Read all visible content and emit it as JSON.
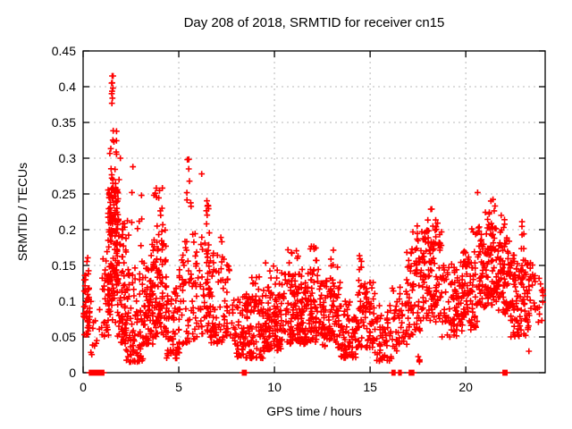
{
  "window": {
    "title": "Day 208 of 2018, SRMTID for receiver cn15"
  },
  "chart_data": {
    "type": "scatter",
    "title": "Day 208 of 2018, SRMTID for receiver cn15",
    "xlabel": "GPS time / hours",
    "ylabel": "SRMTID / TECUs",
    "xlim": [
      0,
      24.15
    ],
    "ylim": [
      0,
      0.45
    ],
    "xticks": [
      0,
      5,
      10,
      15,
      20
    ],
    "xtick_labels": [
      "0",
      "5",
      "10",
      "15",
      "20"
    ],
    "yticks": [
      0,
      0.05,
      0.1,
      0.15,
      0.2,
      0.25,
      0.3,
      0.35,
      0.4,
      0.45
    ],
    "ytick_labels": [
      "0",
      "0.05",
      "0.1",
      "0.15",
      "0.2",
      "0.25",
      "0.3",
      "0.35",
      "0.4",
      "0.45"
    ],
    "grid": true,
    "legend": false,
    "marker": "plus",
    "marker_color": "#ff0000",
    "grid_color": "#b8b8b8",
    "axis_color": "#000000",
    "background_color": "#ffffff",
    "cluster_format": "[x_start_hours, x_end_hours, n_points, y_min_TECU, y_max_TECU, low_bias_power]",
    "clusters": [
      [
        0.02,
        0.35,
        40,
        0.05,
        0.125,
        1.0
      ],
      [
        0.05,
        0.3,
        8,
        0.125,
        0.165,
        1.0
      ],
      [
        0.4,
        1.05,
        14,
        0.02,
        0.1,
        1.3
      ],
      [
        1.0,
        1.35,
        30,
        0.05,
        0.17,
        1.1
      ],
      [
        1.3,
        1.85,
        150,
        0.07,
        0.26,
        0.9
      ],
      [
        1.35,
        1.75,
        16,
        0.26,
        0.34,
        1.0
      ],
      [
        1.45,
        1.62,
        5,
        0.375,
        0.418,
        1.0
      ],
      [
        1.8,
        2.25,
        70,
        0.04,
        0.23,
        1.4
      ],
      [
        2.25,
        3.15,
        85,
        0.015,
        0.15,
        1.5
      ],
      [
        2.3,
        3.1,
        8,
        0.15,
        0.22,
        1.0
      ],
      [
        3.15,
        3.65,
        60,
        0.04,
        0.17,
        1.3
      ],
      [
        3.6,
        4.35,
        100,
        0.05,
        0.22,
        1.3
      ],
      [
        3.7,
        4.25,
        10,
        0.22,
        0.26,
        1.0
      ],
      [
        4.35,
        5.05,
        60,
        0.02,
        0.12,
        1.3
      ],
      [
        5.0,
        5.85,
        55,
        0.04,
        0.2,
        1.5
      ],
      [
        5.35,
        5.65,
        6,
        0.21,
        0.3,
        1.0
      ],
      [
        5.85,
        6.65,
        65,
        0.05,
        0.2,
        1.4
      ],
      [
        6.35,
        6.6,
        8,
        0.2,
        0.25,
        1.0
      ],
      [
        6.6,
        7.65,
        80,
        0.04,
        0.16,
        1.4
      ],
      [
        6.7,
        7.3,
        6,
        0.16,
        0.2,
        1.0
      ],
      [
        7.65,
        8.35,
        40,
        0.02,
        0.11,
        1.3
      ],
      [
        8.3,
        9.45,
        105,
        0.02,
        0.11,
        1.2
      ],
      [
        8.8,
        9.4,
        6,
        0.11,
        0.14,
        1.0
      ],
      [
        9.4,
        10.35,
        105,
        0.03,
        0.125,
        1.2
      ],
      [
        9.5,
        10.2,
        6,
        0.125,
        0.155,
        1.0
      ],
      [
        10.35,
        11.35,
        105,
        0.04,
        0.14,
        1.2
      ],
      [
        10.7,
        11.3,
        7,
        0.14,
        0.185,
        1.0
      ],
      [
        11.35,
        12.45,
        115,
        0.04,
        0.145,
        1.2
      ],
      [
        11.8,
        12.2,
        7,
        0.145,
        0.19,
        1.0
      ],
      [
        12.45,
        13.45,
        95,
        0.035,
        0.13,
        1.2
      ],
      [
        12.9,
        13.3,
        6,
        0.13,
        0.175,
        1.0
      ],
      [
        13.45,
        14.25,
        65,
        0.02,
        0.1,
        1.3
      ],
      [
        14.25,
        15.25,
        85,
        0.035,
        0.13,
        1.2
      ],
      [
        14.4,
        15.1,
        6,
        0.13,
        0.165,
        1.0
      ],
      [
        15.25,
        16.15,
        55,
        0.015,
        0.095,
        1.3
      ],
      [
        16.15,
        16.95,
        45,
        0.03,
        0.12,
        1.2
      ],
      [
        16.9,
        17.65,
        65,
        0.05,
        0.18,
        1.2
      ],
      [
        17.2,
        17.55,
        5,
        0.18,
        0.21,
        1.0
      ],
      [
        17.4,
        17.6,
        4,
        0.01,
        0.03,
        1.0
      ],
      [
        17.65,
        18.75,
        115,
        0.07,
        0.2,
        1.1
      ],
      [
        18.0,
        18.6,
        8,
        0.2,
        0.24,
        1.0
      ],
      [
        18.75,
        19.85,
        95,
        0.05,
        0.155,
        1.2
      ],
      [
        19.85,
        20.65,
        75,
        0.06,
        0.17,
        1.2
      ],
      [
        20.3,
        20.6,
        4,
        0.17,
        0.21,
        1.0
      ],
      [
        20.65,
        21.65,
        115,
        0.09,
        0.205,
        1.0
      ],
      [
        21.0,
        21.6,
        10,
        0.205,
        0.245,
        1.0
      ],
      [
        21.65,
        22.35,
        75,
        0.08,
        0.19,
        1.1
      ],
      [
        21.8,
        22.2,
        6,
        0.19,
        0.225,
        1.0
      ],
      [
        22.35,
        23.15,
        80,
        0.05,
        0.165,
        1.2
      ],
      [
        22.9,
        23.1,
        6,
        0.165,
        0.215,
        1.0
      ],
      [
        23.15,
        23.65,
        35,
        0.06,
        0.155,
        1.1
      ],
      [
        23.65,
        24.05,
        12,
        0.07,
        0.15,
        1.1
      ]
    ],
    "zero_run_format": "[x_start_hours, x_end_hours, n_points_at_y_zero]",
    "zero_runs": [
      [
        0.33,
        1.08,
        30
      ],
      [
        8.33,
        8.52,
        12
      ],
      [
        16.15,
        16.3,
        4
      ],
      [
        16.5,
        16.62,
        4
      ],
      [
        17.05,
        17.28,
        6
      ],
      [
        21.95,
        22.15,
        8
      ]
    ],
    "outliers": [
      [
        1.52,
        0.415
      ],
      [
        1.49,
        0.405
      ],
      [
        1.56,
        0.398
      ],
      [
        1.53,
        0.384
      ],
      [
        1.95,
        0.3
      ],
      [
        1.88,
        0.27
      ],
      [
        2.6,
        0.288
      ],
      [
        2.55,
        0.252
      ],
      [
        3.05,
        0.248
      ],
      [
        5.45,
        0.298
      ],
      [
        5.52,
        0.285
      ],
      [
        6.2,
        0.278
      ],
      [
        20.62,
        0.252
      ],
      [
        9.2,
        0.134
      ],
      [
        23.3,
        0.03
      ]
    ]
  }
}
